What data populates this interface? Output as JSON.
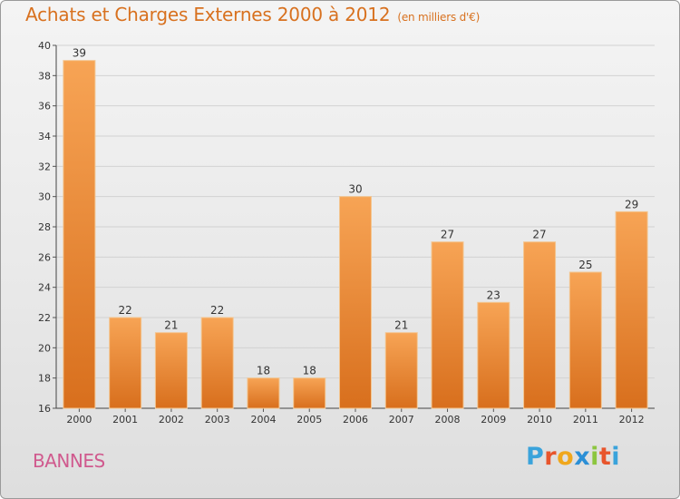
{
  "title": "Achats et Charges Externes 2000 à 2012",
  "subtitle": "(en milliers d'€)",
  "place": "BANNES",
  "logo_text": "Proxiti",
  "logo_colors": [
    "#3aa3db",
    "#e8552c",
    "#f0a71c",
    "#2b8fd6",
    "#8cc63f",
    "#e8552c",
    "#3aa3db"
  ],
  "colors": {
    "title": "#d8711f",
    "bar_top": "#f7a455",
    "bar_bottom": "#d86f1d",
    "place": "#d05a8e"
  },
  "chart_data": {
    "type": "bar",
    "categories": [
      "2000",
      "2001",
      "2002",
      "2003",
      "2004",
      "2005",
      "2006",
      "2007",
      "2008",
      "2009",
      "2010",
      "2011",
      "2012"
    ],
    "values": [
      39,
      22,
      21,
      22,
      18,
      18,
      30,
      21,
      27,
      23,
      27,
      25,
      29
    ],
    "ylim": [
      16,
      40
    ],
    "yticks": [
      16,
      18,
      20,
      22,
      24,
      26,
      28,
      30,
      32,
      34,
      36,
      38,
      40
    ],
    "grid": true
  }
}
